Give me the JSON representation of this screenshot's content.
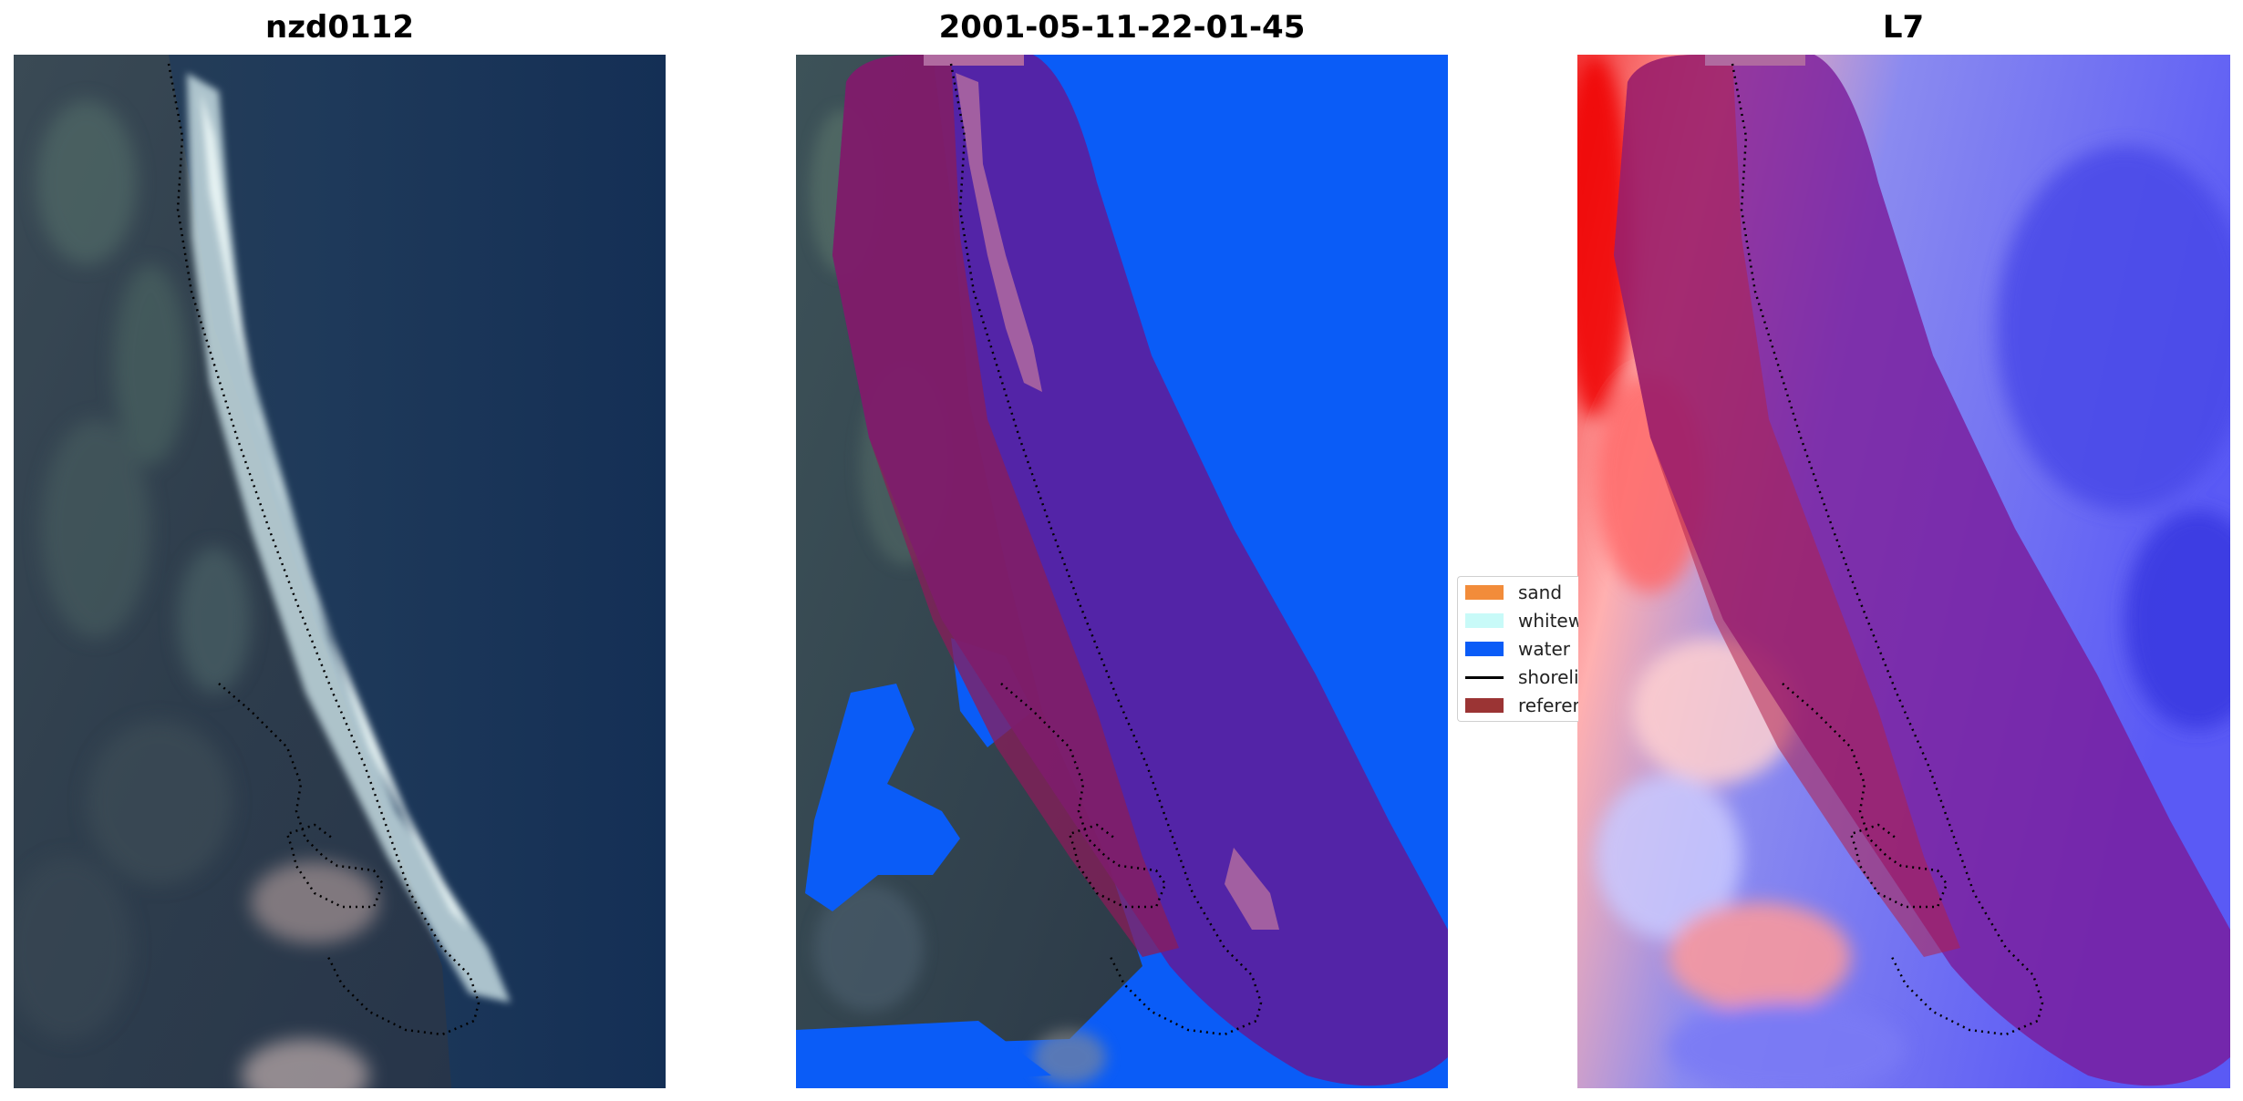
{
  "panels": [
    {
      "title": "nzd0112",
      "kind": "rgb-satellite-image"
    },
    {
      "title": "2001-05-11-22-01-45",
      "kind": "classified-overlay-image"
    },
    {
      "title": "L7",
      "kind": "index-heatmap-image"
    }
  ],
  "legend": {
    "items": [
      {
        "label": "sand",
        "color": "#f28c3a",
        "shape": "patch"
      },
      {
        "label": "whitewater",
        "color": "#c8faf8",
        "shape": "patch"
      },
      {
        "label": "water",
        "color": "#0a5cf7",
        "shape": "patch"
      },
      {
        "label": "shoreline",
        "color": "#000000",
        "shape": "line"
      },
      {
        "label": "reference shoreline buffer",
        "color": "#9b3434",
        "shape": "patch"
      }
    ]
  },
  "colors": {
    "background": "#ffffff",
    "water": "#0a5cf7",
    "buffer_overlay": "#7a1a6a",
    "shoreline_dots": "#000000"
  }
}
